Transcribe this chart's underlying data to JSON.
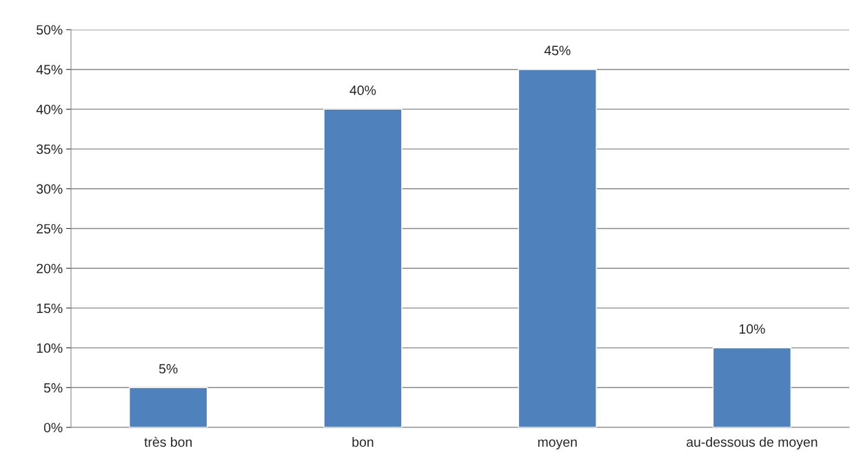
{
  "chart_data": {
    "type": "bar",
    "categories": [
      "très bon",
      "bon",
      "moyen",
      "au-dessous de moyen"
    ],
    "values": [
      5,
      40,
      45,
      10
    ],
    "value_labels": [
      "5%",
      "40%",
      "45%",
      "10%"
    ],
    "color": "#4f81bd",
    "ylim": [
      0,
      50
    ],
    "yticks": [
      {
        "value": 0,
        "label": "0%"
      },
      {
        "value": 5,
        "label": "5%"
      },
      {
        "value": 10,
        "label": "10%"
      },
      {
        "value": 15,
        "label": "15%"
      },
      {
        "value": 20,
        "label": "20%"
      },
      {
        "value": 25,
        "label": "25%"
      },
      {
        "value": 30,
        "label": "30%"
      },
      {
        "value": 35,
        "label": "35%"
      },
      {
        "value": 40,
        "label": "40%"
      },
      {
        "value": 45,
        "label": "45%"
      },
      {
        "value": 50,
        "label": "50%"
      }
    ],
    "grid": "y"
  }
}
